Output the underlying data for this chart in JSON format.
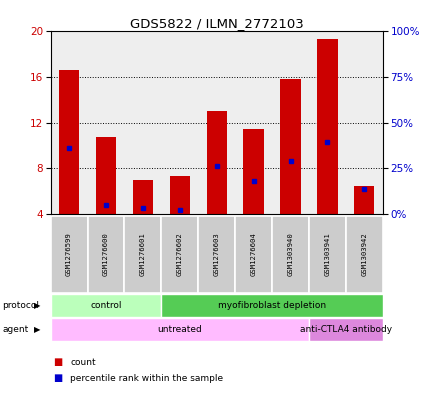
{
  "title": "GDS5822 / ILMN_2772103",
  "samples": [
    "GSM1276599",
    "GSM1276600",
    "GSM1276601",
    "GSM1276602",
    "GSM1276603",
    "GSM1276604",
    "GSM1303940",
    "GSM1303941",
    "GSM1303942"
  ],
  "bar_bottom": 4.0,
  "bar_tops": [
    16.6,
    10.8,
    7.0,
    7.3,
    13.0,
    11.5,
    15.8,
    19.3,
    6.5
  ],
  "blue_positions": [
    9.8,
    4.8,
    4.5,
    4.4,
    8.2,
    6.9,
    8.7,
    10.3,
    6.2
  ],
  "ylim": [
    4,
    20
  ],
  "y_ticks_left": [
    4,
    8,
    12,
    16,
    20
  ],
  "y_ticks_right_vals": [
    0,
    25,
    50,
    75,
    100
  ],
  "y_ticks_right_pos": [
    4,
    8,
    12,
    16,
    20
  ],
  "y_label_left_color": "#cc0000",
  "y_label_right_color": "#0000cc",
  "bar_color": "#cc0000",
  "blue_color": "#0000cc",
  "grid_color": "black",
  "protocol_groups": [
    {
      "label": "control",
      "start": 0,
      "end": 3,
      "color": "#bbffbb"
    },
    {
      "label": "myofibroblast depletion",
      "start": 3,
      "end": 9,
      "color": "#55cc55"
    }
  ],
  "agent_groups": [
    {
      "label": "untreated",
      "start": 0,
      "end": 7,
      "color": "#ffbbff"
    },
    {
      "label": "anti-CTLA4 antibody",
      "start": 7,
      "end": 9,
      "color": "#dd88dd"
    }
  ],
  "legend_count_color": "#cc0000",
  "legend_pct_color": "#0000cc",
  "bg_plot": "#eeeeee",
  "bg_sample_row": "#cccccc"
}
